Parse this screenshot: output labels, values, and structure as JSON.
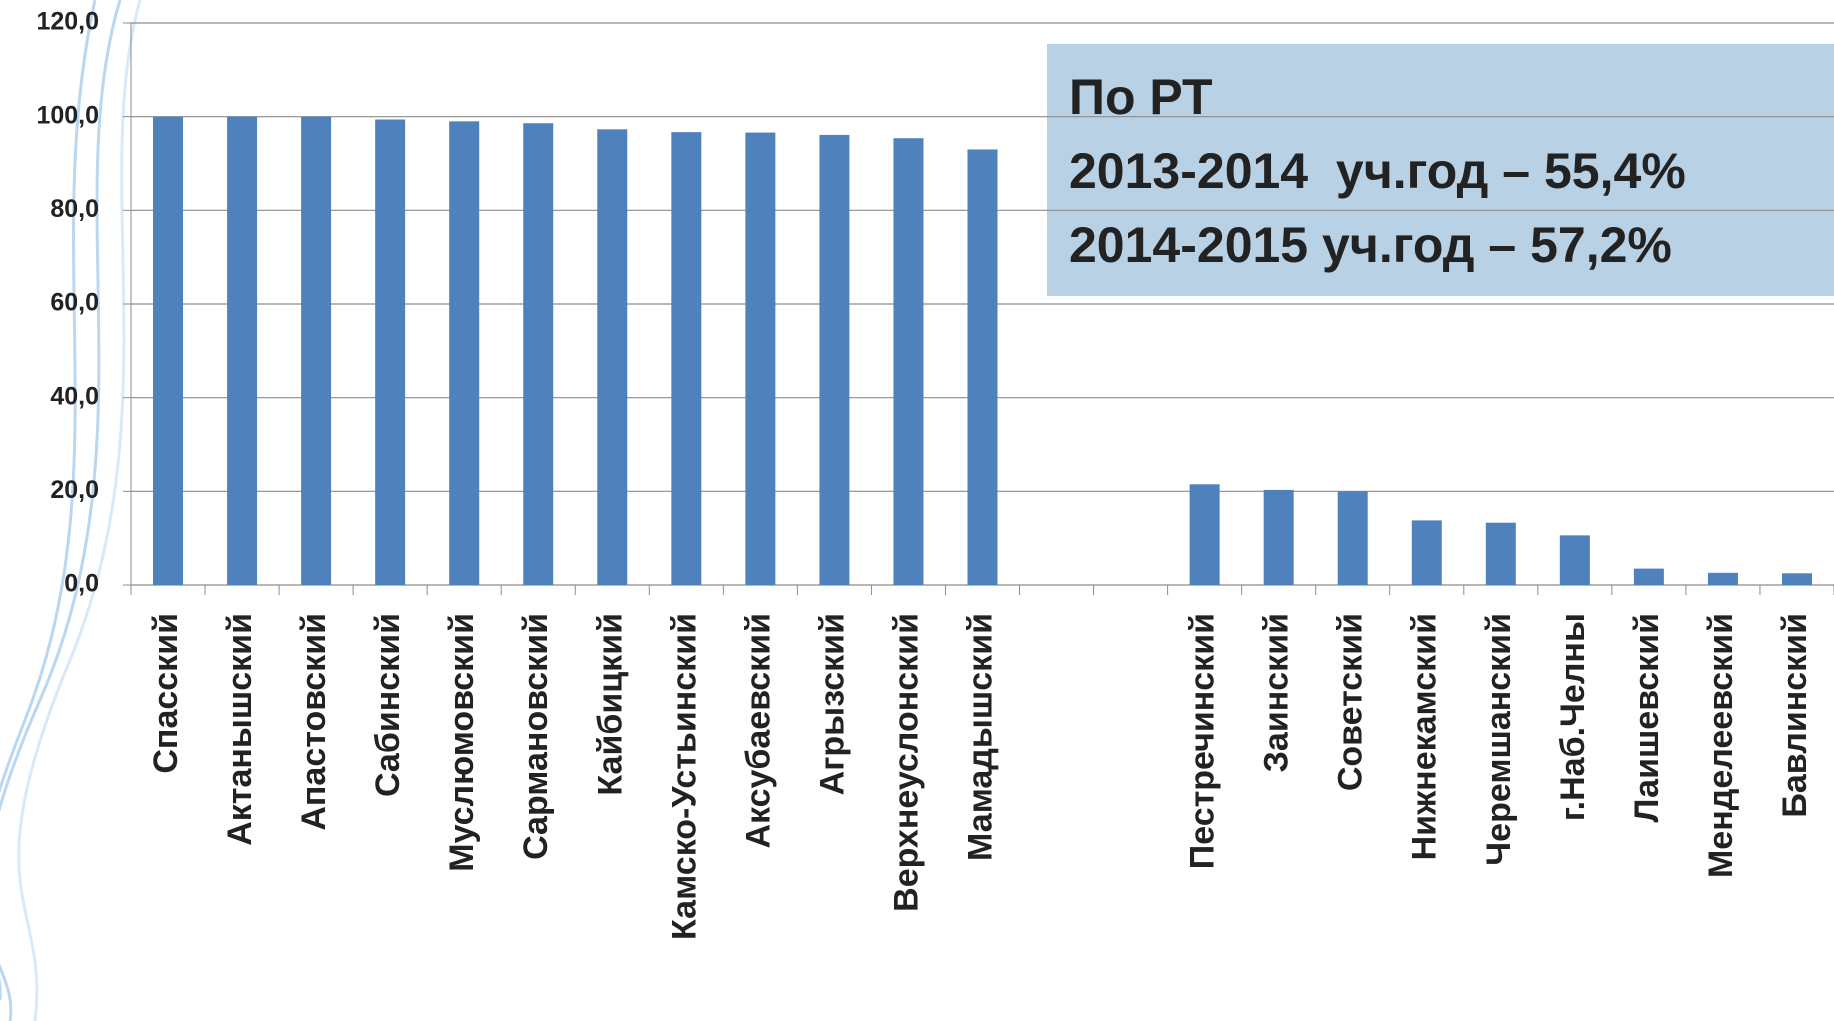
{
  "chart_data": {
    "type": "bar",
    "categories": [
      "Спасский",
      "Актанышский",
      "Апастовский",
      "Сабинский",
      "Муслюмовский",
      "Сармановский",
      "Кайбицкий",
      "Камско-Устьинский",
      "Аксубаевский",
      "Агрызский",
      "Верхнеуслонский",
      "Мамадышский",
      null,
      null,
      "Пестречинский",
      "Заинский",
      "Советский",
      "Нижнекамский",
      "Черемшанский",
      "г.Наб.Челны",
      "Лаишевский",
      "Менделеевский",
      "Бавлинский"
    ],
    "values": [
      100,
      100,
      100,
      99.4,
      99.0,
      98.6,
      97.3,
      96.7,
      96.6,
      96.1,
      95.4,
      93.0,
      null,
      null,
      21.5,
      20.3,
      20.0,
      13.8,
      13.3,
      10.6,
      3.5,
      2.6,
      2.5
    ],
    "color": "#4f81bd",
    "ylim": [
      0,
      120
    ],
    "yticks": [
      {
        "value": 0,
        "label": "0,0"
      },
      {
        "value": 20,
        "label": "20,0"
      },
      {
        "value": 40,
        "label": "40,0"
      },
      {
        "value": 60,
        "label": "60,0"
      },
      {
        "value": 80,
        "label": "80,0"
      },
      {
        "value": 100,
        "label": "100,0"
      },
      {
        "value": 120,
        "label": "120,0"
      }
    ],
    "grid": true,
    "annotation": [
      "По РТ",
      "2013-2014  уч.год – 55,4%",
      "2014-2015 уч.год – 57,2%"
    ]
  }
}
